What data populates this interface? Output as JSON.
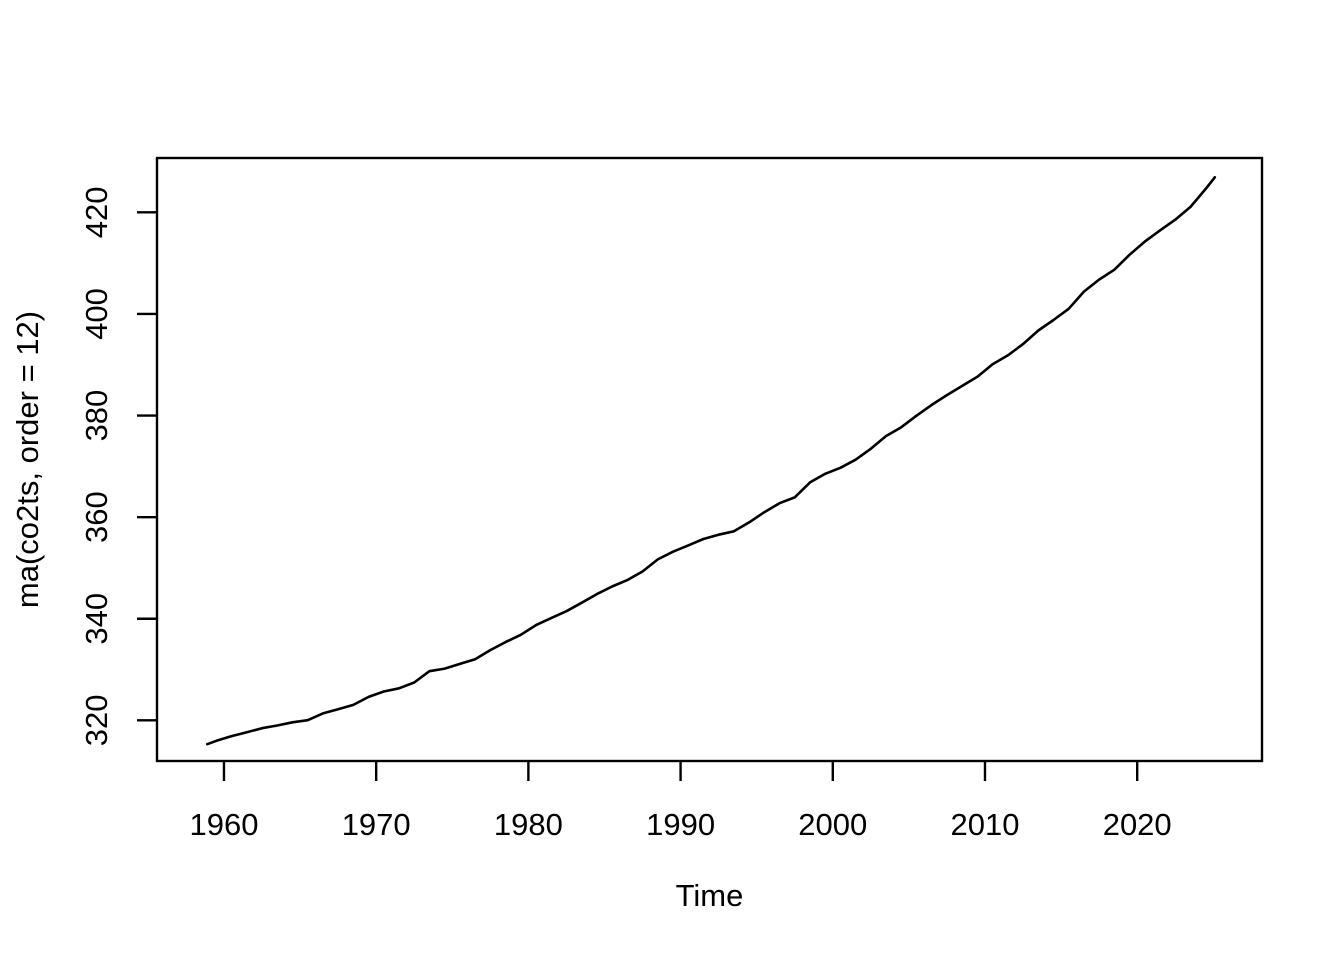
{
  "figure": {
    "background": "#FFFFFF",
    "foreground": "#000000"
  },
  "chart_data": {
    "type": "line",
    "title": "",
    "xlabel": "Time",
    "ylabel": "ma(co2ts, order = 12)",
    "x_ticks": [
      1960,
      1970,
      1980,
      1990,
      2000,
      2010,
      2020
    ],
    "y_ticks": [
      320,
      340,
      360,
      380,
      400,
      420
    ],
    "xlim": [
      1955.6,
      2028.2
    ],
    "ylim": [
      312.0,
      430.7
    ],
    "grid": false,
    "legend_position": "none",
    "line_color": "#000000",
    "axis_color": "#000000",
    "series": [
      {
        "name": "ma(co2ts, order = 12)",
        "x": [
          1958.9,
          1959.5,
          1960.5,
          1961.5,
          1962.5,
          1963.5,
          1964.5,
          1965.5,
          1966.5,
          1967.5,
          1968.5,
          1969.5,
          1970.5,
          1971.5,
          1972.5,
          1973.5,
          1974.5,
          1975.5,
          1976.5,
          1977.5,
          1978.5,
          1979.5,
          1980.5,
          1981.5,
          1982.5,
          1983.5,
          1984.5,
          1985.5,
          1986.5,
          1987.5,
          1988.5,
          1989.5,
          1990.5,
          1991.5,
          1992.5,
          1993.5,
          1994.5,
          1995.5,
          1996.5,
          1997.5,
          1998.5,
          1999.5,
          2000.5,
          2001.5,
          2002.5,
          2003.5,
          2004.5,
          2005.5,
          2006.5,
          2007.5,
          2008.5,
          2009.5,
          2010.5,
          2011.5,
          2012.5,
          2013.5,
          2014.5,
          2015.5,
          2016.5,
          2017.5,
          2018.5,
          2019.5,
          2020.5,
          2021.5,
          2022.5,
          2023.5,
          2024.5,
          2025.1
        ],
        "y": [
          315.3,
          315.98,
          316.91,
          317.64,
          318.45,
          318.99,
          319.62,
          320.04,
          321.37,
          322.18,
          323.04,
          324.62,
          325.68,
          326.32,
          327.45,
          329.68,
          330.19,
          331.12,
          332.03,
          333.84,
          335.41,
          336.84,
          338.76,
          340.12,
          341.48,
          343.15,
          344.85,
          346.35,
          347.61,
          349.31,
          351.69,
          353.2,
          354.45,
          355.7,
          356.54,
          357.21,
          358.96,
          360.97,
          362.74,
          363.88,
          366.84,
          368.54,
          369.71,
          371.32,
          373.45,
          375.98,
          377.7,
          379.98,
          382.09,
          384.02,
          385.83,
          387.64,
          390.1,
          391.85,
          394.06,
          396.74,
          398.81,
          401.01,
          404.41,
          406.76,
          408.72,
          411.66,
          414.24,
          416.45,
          418.56,
          421.08,
          424.61,
          426.9
        ]
      }
    ]
  }
}
